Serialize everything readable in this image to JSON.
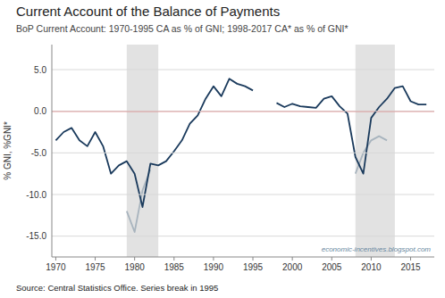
{
  "chart_data": {
    "type": "line",
    "title": "Current Account of the Balance of Payments",
    "subtitle": "BoP Current Account: 1970-1995 CA as % of GNI; 1998-2017 CA* as % of GNI*",
    "y_label": "% GNI, %GNI*",
    "source": "Source: Central Statistics Office. Series break in 1995",
    "watermark": "economic-incentives.blogspot.com",
    "series": [
      {
        "color": "#a8b4be",
        "x": [
          1979,
          1980,
          1981,
          1982
        ],
        "values": [
          -12.0,
          -14.5,
          -9.5,
          -7.0
        ]
      },
      {
        "color": "#a8b4be",
        "x": [
          2008,
          2009,
          2010,
          2011,
          2012
        ],
        "values": [
          -7.5,
          -5.0,
          -3.5,
          -3.0,
          -3.5
        ]
      },
      {
        "color": "#1a3a5c",
        "x": [
          1970,
          1971,
          1972,
          1973,
          1974,
          1975,
          1976,
          1977,
          1978,
          1979,
          1980,
          1981,
          1982,
          1983,
          1984,
          1985,
          1986,
          1987,
          1988,
          1989,
          1990,
          1991,
          1992,
          1993,
          1994,
          1995
        ],
        "values": [
          -3.5,
          -2.5,
          -2.0,
          -3.5,
          -4.2,
          -2.5,
          -4.2,
          -7.5,
          -6.5,
          -6.0,
          -7.5,
          -11.5,
          -6.3,
          -6.5,
          -6.0,
          -4.8,
          -3.5,
          -1.5,
          -0.5,
          1.5,
          3.0,
          1.8,
          3.9,
          3.3,
          3.0,
          2.5
        ]
      },
      {
        "color": "#1a3a5c",
        "x": [
          1998,
          1999,
          2000,
          2001,
          2002,
          2003,
          2004,
          2005,
          2006,
          2007,
          2008,
          2009,
          2010,
          2011,
          2012,
          2013,
          2014,
          2015,
          2016,
          2017
        ],
        "values": [
          1.0,
          0.5,
          0.9,
          0.6,
          0.5,
          0.4,
          1.5,
          1.8,
          0.6,
          -0.3,
          -5.5,
          -7.5,
          -0.8,
          0.5,
          1.5,
          2.8,
          3.0,
          1.2,
          0.8,
          0.8
        ]
      }
    ],
    "shade_regions": [
      [
        1979,
        1983
      ],
      [
        2008,
        2013
      ]
    ],
    "reference_lines": [
      {
        "value": 0,
        "color": "#e03030"
      }
    ],
    "xlim": [
      1969.5,
      2018.0
    ],
    "ylim": [
      -17.5,
      8.0
    ],
    "xticks": [
      1970,
      1975,
      1980,
      1985,
      1990,
      1995,
      2000,
      2005,
      2010,
      2015
    ],
    "yticks": [
      {
        "value": -15.0,
        "label": "-15.0"
      },
      {
        "value": -10.0,
        "label": "-10.0"
      },
      {
        "value": -5.0,
        "label": "-5.0"
      },
      {
        "value": 0.0,
        "label": "0.0"
      },
      {
        "value": 5.0,
        "label": "5.0"
      }
    ],
    "grid": true
  }
}
